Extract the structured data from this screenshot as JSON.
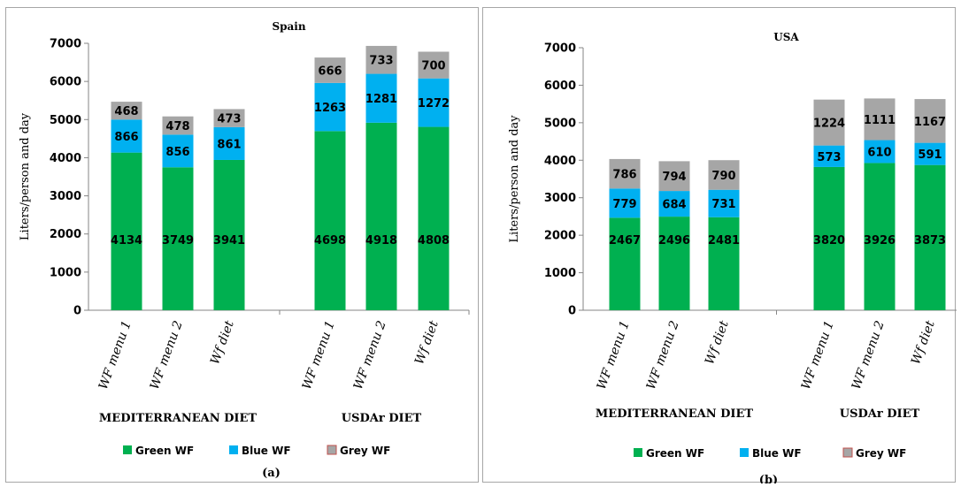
{
  "chart_data": [
    {
      "type": "bar",
      "stacked": true,
      "title": "Spain",
      "panel_label": "(a)",
      "ylabel": "Liters/person and day",
      "xlabel": "",
      "ylim": [
        0,
        7000
      ],
      "yticks": [
        "0",
        "1000",
        "2000",
        "3000",
        "4000",
        "5000",
        "6000",
        "7000"
      ],
      "categories": [
        "WF menu 1",
        "WF menu 2",
        "Wf diet",
        "WF menu 1",
        "WF menu 2",
        "Wf diet"
      ],
      "groups": [
        {
          "label": "MEDITERRANEAN DIET",
          "members": [
            0,
            1,
            2
          ]
        },
        {
          "label": "USDAr DIET",
          "members": [
            3,
            4,
            5
          ]
        }
      ],
      "series": [
        {
          "name": "Green WF",
          "color": "#00b050",
          "values": [
            4134,
            3749,
            3941,
            4698,
            4918,
            4808
          ]
        },
        {
          "name": "Blue WF",
          "color": "#00b0f0",
          "values": [
            866,
            856,
            861,
            1263,
            1281,
            1272
          ]
        },
        {
          "name": "Grey WF",
          "color": "#a6a6a6",
          "values": [
            468,
            478,
            473,
            666,
            733,
            700
          ]
        }
      ],
      "legend_position": "bottom",
      "grid": false
    },
    {
      "type": "bar",
      "stacked": true,
      "title": "USA",
      "panel_label": "(b)",
      "ylabel": "Liters/person and day",
      "xlabel": "",
      "ylim": [
        0,
        7000
      ],
      "yticks": [
        "0",
        "1000",
        "2000",
        "3000",
        "4000",
        "5000",
        "6000",
        "7000"
      ],
      "categories": [
        "WF menu 1",
        "WF menu 2",
        "Wf diet",
        "WF menu 1",
        "WF menu 2",
        "Wf diet"
      ],
      "groups": [
        {
          "label": "MEDITERRANEAN DIET",
          "members": [
            0,
            1,
            2
          ]
        },
        {
          "label": "USDAr DIET",
          "members": [
            3,
            4,
            5
          ]
        }
      ],
      "series": [
        {
          "name": "Green WF",
          "color": "#00b050",
          "values": [
            2467,
            2496,
            2481,
            3820,
            3926,
            3873
          ]
        },
        {
          "name": "Blue WF",
          "color": "#00b0f0",
          "values": [
            779,
            684,
            731,
            573,
            610,
            591
          ]
        },
        {
          "name": "Grey WF",
          "color": "#a6a6a6",
          "values": [
            786,
            794,
            790,
            1224,
            1111,
            1167
          ]
        }
      ],
      "legend_position": "bottom",
      "grid": false
    }
  ]
}
